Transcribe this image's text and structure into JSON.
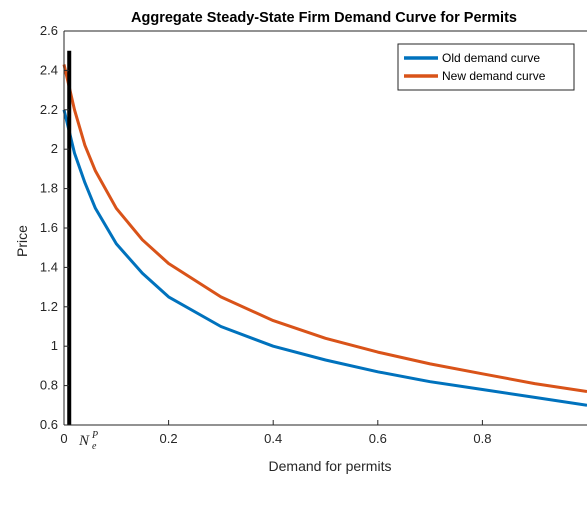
{
  "chart_data": {
    "type": "line",
    "title": "Aggregate Steady-State Firm Demand Curve for Permits",
    "xlabel": "Demand for permits",
    "ylabel": "Price",
    "xlim": [
      0,
      1
    ],
    "ylim": [
      0.6,
      2.6
    ],
    "x_ticks": [
      "0",
      "0.2",
      "0.4",
      "0.6",
      "0.8"
    ],
    "y_ticks": [
      "0.6",
      "0.8",
      "1",
      "1.2",
      "1.4",
      "1.6",
      "1.8",
      "2",
      "2.2",
      "2.4",
      "2.6"
    ],
    "grid": false,
    "legend_position": "top-right",
    "series": [
      {
        "name": "Old demand curve",
        "color": "#0072BD",
        "x": [
          0,
          0.02,
          0.04,
          0.06,
          0.1,
          0.15,
          0.2,
          0.3,
          0.4,
          0.5,
          0.6,
          0.7,
          0.8,
          0.9,
          1.0
        ],
        "y": [
          2.2,
          1.98,
          1.83,
          1.7,
          1.52,
          1.37,
          1.25,
          1.1,
          1.0,
          0.93,
          0.87,
          0.82,
          0.78,
          0.74,
          0.7
        ]
      },
      {
        "name": "New demand curve",
        "color": "#D95319",
        "x": [
          0,
          0.02,
          0.04,
          0.06,
          0.1,
          0.15,
          0.2,
          0.3,
          0.4,
          0.5,
          0.6,
          0.7,
          0.8,
          0.9,
          1.0
        ],
        "y": [
          2.43,
          2.2,
          2.02,
          1.89,
          1.7,
          1.54,
          1.42,
          1.25,
          1.13,
          1.04,
          0.97,
          0.91,
          0.86,
          0.81,
          0.77
        ]
      }
    ],
    "vertical_line": {
      "x": 0.01,
      "y_top": 2.5,
      "color": "#000000"
    },
    "annotation": {
      "main": "N",
      "sup": "P",
      "sub": "e"
    }
  }
}
